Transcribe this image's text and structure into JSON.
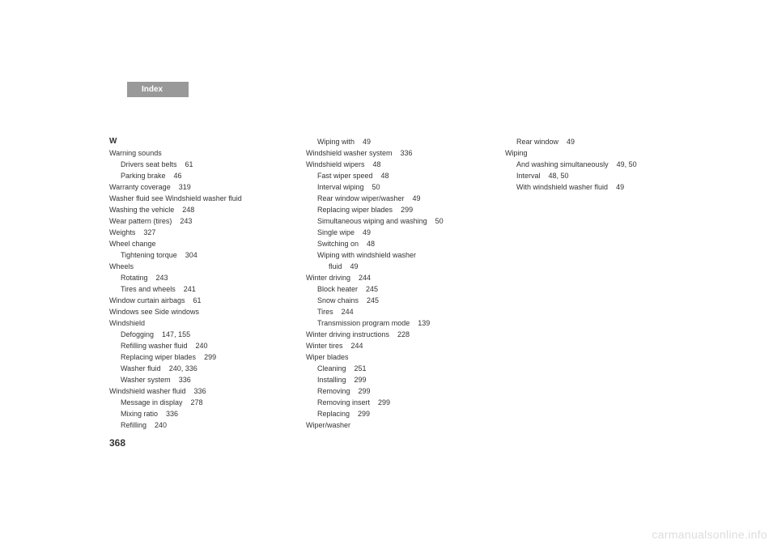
{
  "tab_label": "Index",
  "page_number": "368",
  "watermark": "carmanualsonline.info",
  "colors": {
    "tab_bg": "#999999",
    "tab_text": "#ffffff",
    "text": "#333333",
    "watermark": "#dddddd",
    "background": "#ffffff"
  },
  "typography": {
    "body_fontsize": 9,
    "line_height": 14,
    "tab_fontsize": 10,
    "page_num_fontsize": 12
  },
  "col1": {
    "letter": "W",
    "e1": "Warning sounds",
    "e1a": "Drivers seat belts",
    "e1a_pg": "61",
    "e1b": "Parking brake",
    "e1b_pg": "46",
    "e2": "Warranty coverage",
    "e2_pg": "319",
    "e3": "Washer fluid see Windshield washer fluid",
    "e4": "Washing the vehicle",
    "e4_pg": "248",
    "e5": "Wear pattern (tires)",
    "e5_pg": "243",
    "e6": "Weights",
    "e6_pg": "327",
    "e7": "Wheel change",
    "e7a": "Tightening torque",
    "e7a_pg": "304",
    "e8": "Wheels",
    "e8a": "Rotating",
    "e8a_pg": "243",
    "e8b": "Tires and wheels",
    "e8b_pg": "241",
    "e9": "Window curtain airbags",
    "e9_pg": "61",
    "e10": "Windows see Side windows",
    "e11": "Windshield",
    "e11a": "Defogging",
    "e11a_pg": "147, 155",
    "e11b": "Refilling washer fluid",
    "e11b_pg": "240",
    "e11c": "Replacing wiper blades",
    "e11c_pg": "299",
    "e11d": "Washer fluid",
    "e11d_pg": "240, 336",
    "e11e": "Washer system",
    "e11e_pg": "336",
    "e12": "Windshield washer fluid",
    "e12_pg": "336",
    "e12a": "Message in display",
    "e12a_pg": "278",
    "e12b": "Mixing ratio",
    "e12b_pg": "336",
    "e12c": "Refilling",
    "e12c_pg": "240"
  },
  "col2": {
    "e1": "Wiping with",
    "e1_pg": "49",
    "e2": "Windshield washer system",
    "e2_pg": "336",
    "e3": "Windshield wipers",
    "e3_pg": "48",
    "e3a": "Fast wiper speed",
    "e3a_pg": "48",
    "e3b": "Interval wiping",
    "e3b_pg": "50",
    "e3c": "Rear window wiper/washer",
    "e3c_pg": "49",
    "e3d": "Replacing wiper blades",
    "e3d_pg": "299",
    "e3e": "Simultaneous wiping and washing",
    "e3e_pg": "50",
    "e3f": "Single wipe",
    "e3f_pg": "49",
    "e3g": "Switching on",
    "e3g_pg": "48",
    "e3h1": "Wiping with windshield washer",
    "e3h2": "fluid",
    "e3h2_pg": "49",
    "e4": "Winter driving",
    "e4_pg": "244",
    "e4a": "Block heater",
    "e4a_pg": "245",
    "e4b": "Snow chains",
    "e4b_pg": "245",
    "e4c": "Tires",
    "e4c_pg": "244",
    "e4d": "Transmission program mode",
    "e4d_pg": "139",
    "e5": "Winter driving instructions",
    "e5_pg": "228",
    "e6": "Winter tires",
    "e6_pg": "244",
    "e7": "Wiper blades",
    "e7a": "Cleaning",
    "e7a_pg": "251",
    "e7b": "Installing",
    "e7b_pg": "299",
    "e7c": "Removing",
    "e7c_pg": "299",
    "e7d": "Removing insert",
    "e7d_pg": "299",
    "e7e": "Replacing",
    "e7e_pg": "299",
    "e8": "Wiper/washer"
  },
  "col3": {
    "e1": "Rear window",
    "e1_pg": "49",
    "e2": "Wiping",
    "e2a": "And washing simultaneously",
    "e2a_pg": "49, 50",
    "e2b": "Interval",
    "e2b_pg": "48, 50",
    "e2c": "With windshield washer fluid",
    "e2c_pg": "49"
  }
}
